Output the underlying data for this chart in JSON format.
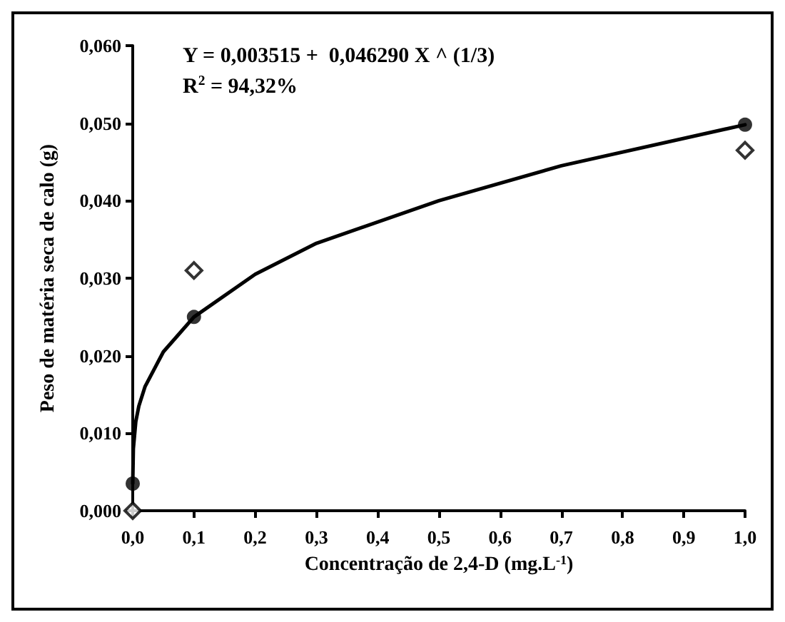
{
  "chart_data": {
    "type": "scatter",
    "xlabel": "Concentração de 2,4-D (mg.L$^{-1}$)",
    "ylabel": "Peso de matéria seca de calo (g)",
    "annotations": [
      "Y = 0,003515 +  0,046290 X ^ (1/3)",
      "R$^{2}$ = 94,32%"
    ],
    "series": [
      {
        "marker": "diamond",
        "color": "#000000",
        "x": [
          0,
          0.1,
          1
        ],
        "values": [
          0,
          0.031,
          0.0465
        ]
      },
      {
        "type": "line",
        "marker": "none",
        "line_style": "solid",
        "color": "#000000",
        "x": [
          0,
          0.001,
          0.005,
          0.01,
          0.02,
          0.05,
          0.1,
          0.2,
          0.3,
          0.5,
          0.7,
          1.0
        ],
        "values": [
          0.0035,
          0.008,
          0.0115,
          0.0135,
          0.016,
          0.0205,
          0.025,
          0.0305,
          0.0345,
          0.04,
          0.0445,
          0.0498
        ]
      },
      {
        "marker": "circle",
        "color": "#000000",
        "x": [
          0,
          0.1,
          1
        ],
        "values": [
          0.0035,
          0.025,
          0.0498
        ]
      }
    ],
    "xlim": [
      0,
      1
    ],
    "xticks": [
      {
        "value": 0,
        "label": "0,0"
      },
      {
        "value": 0.1,
        "label": "0,1"
      },
      {
        "value": 0.2,
        "label": "0,2"
      },
      {
        "value": 0.3,
        "label": "0,3"
      },
      {
        "value": 0.4,
        "label": "0,4"
      },
      {
        "value": 0.5,
        "label": "0,5"
      },
      {
        "value": 0.6,
        "label": "0,6"
      },
      {
        "value": 0.7,
        "label": "0,7"
      },
      {
        "value": 0.8,
        "label": "0,8"
      },
      {
        "value": 0.9,
        "label": "0,9"
      },
      {
        "value": 1,
        "label": "1,0"
      }
    ],
    "ylim": [
      0,
      0.06
    ],
    "yticks": [
      {
        "value": 0,
        "label": "0,000"
      },
      {
        "value": 0.01,
        "label": "0,010"
      },
      {
        "value": 0.02,
        "label": "0,020"
      },
      {
        "value": 0.03,
        "label": "0,030"
      },
      {
        "value": 0.04,
        "label": "0,040"
      },
      {
        "value": 0.05,
        "label": "0,050"
      },
      {
        "value": 0.06,
        "label": "0,060"
      }
    ],
    "grid": false
  }
}
